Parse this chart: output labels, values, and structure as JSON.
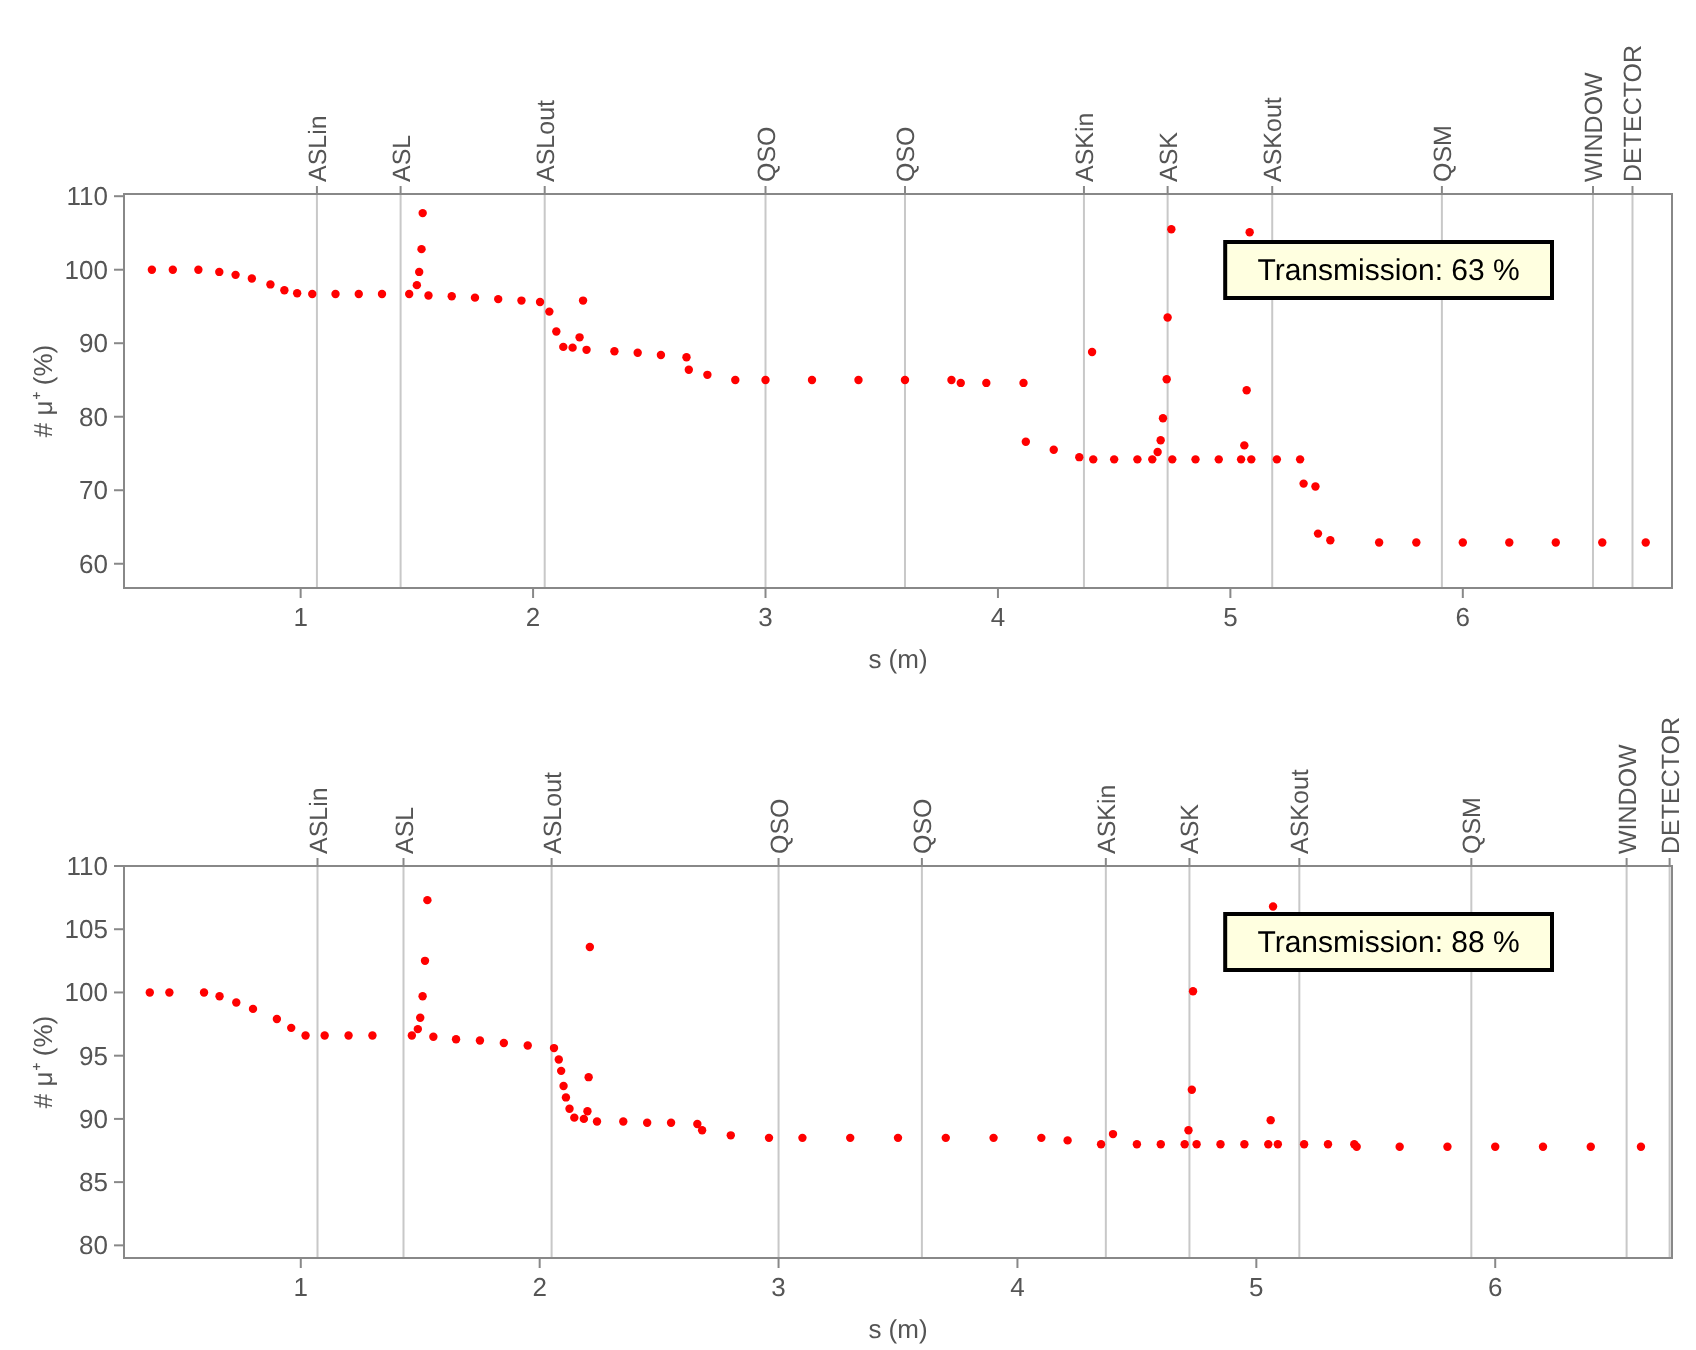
{
  "chart_data": [
    {
      "type": "scatter",
      "xlabel": "s (m)",
      "ylabel": "# μ⁺ (%)",
      "xlim": [
        0.24,
        6.9
      ],
      "xticks": [
        1,
        2,
        3,
        4,
        5,
        6
      ],
      "ylim": [
        56.7,
        110.3
      ],
      "yticks": [
        60,
        70,
        80,
        90,
        100,
        110
      ],
      "marker": "circle",
      "grid": false,
      "annotations": [
        "Transmission: 63 %"
      ],
      "ref_lines": [
        {
          "axis": "x",
          "value": 1.07,
          "label": "ASLin"
        },
        {
          "axis": "x",
          "value": 1.43,
          "label": "ASL"
        },
        {
          "axis": "x",
          "value": 2.05,
          "label": "ASLout"
        },
        {
          "axis": "x",
          "value": 3.0,
          "label": "QSO"
        },
        {
          "axis": "x",
          "value": 3.6,
          "label": "QSO"
        },
        {
          "axis": "x",
          "value": 4.37,
          "label": "ASKin"
        },
        {
          "axis": "x",
          "value": 4.73,
          "label": "ASK"
        },
        {
          "axis": "x",
          "value": 5.18,
          "label": "ASKout"
        },
        {
          "axis": "x",
          "value": 5.91,
          "label": "QSM"
        },
        {
          "axis": "x",
          "value": 6.56,
          "label": "WINDOW"
        },
        {
          "axis": "x",
          "value": 6.73,
          "label": "DETECTOR"
        }
      ],
      "series": [
        {
          "color": "#ff0000",
          "x": [
            0.36,
            0.45,
            0.56,
            0.65,
            0.72,
            0.79,
            0.87,
            0.93,
            0.985,
            1.05,
            1.15,
            1.25,
            1.35,
            1.467,
            1.5,
            1.51,
            1.52,
            1.525,
            1.55,
            1.65,
            1.75,
            1.85,
            1.95,
            2.03,
            2.07,
            2.1,
            2.13,
            2.17,
            2.2,
            2.215,
            2.23,
            2.35,
            2.45,
            2.55,
            2.66,
            2.67,
            2.75,
            2.87,
            3.0,
            3.2,
            3.4,
            3.6,
            3.8,
            3.84,
            3.95,
            4.11,
            4.12,
            4.24,
            4.35,
            4.405,
            4.41,
            4.5,
            4.6,
            4.664,
            4.687,
            4.7,
            4.71,
            4.726,
            4.73,
            4.746,
            4.75,
            4.85,
            4.95,
            5.046,
            5.06,
            5.07,
            5.083,
            5.09,
            5.2,
            5.3,
            5.315,
            5.366,
            5.377,
            5.43,
            5.64,
            5.8,
            6.0,
            6.2,
            6.4,
            6.6,
            6.787
          ],
          "values": [
            100,
            100,
            100,
            99.7,
            99.3,
            98.8,
            98.0,
            97.2,
            96.8,
            96.7,
            96.7,
            96.7,
            96.7,
            96.7,
            97.9,
            99.7,
            102.8,
            107.7,
            96.5,
            96.4,
            96.2,
            96.0,
            95.8,
            95.6,
            94.3,
            91.6,
            89.5,
            89.4,
            90.8,
            95.8,
            89.1,
            88.9,
            88.7,
            88.4,
            88.1,
            86.4,
            85.7,
            85.0,
            85.0,
            85.0,
            85.0,
            85.0,
            85.0,
            84.6,
            84.6,
            84.6,
            76.6,
            75.5,
            74.5,
            88.8,
            74.2,
            74.2,
            74.2,
            74.2,
            75.2,
            76.8,
            79.8,
            85.1,
            93.5,
            105.5,
            74.2,
            74.2,
            74.2,
            74.2,
            76.1,
            83.6,
            105.1,
            74.2,
            74.2,
            74.2,
            70.9,
            70.5,
            64.1,
            63.2,
            62.9,
            62.9,
            62.9,
            62.9,
            62.9,
            62.9,
            62.9
          ]
        }
      ]
    },
    {
      "type": "scatter",
      "xlabel": "s (m)",
      "ylabel": "# μ⁺ (%)",
      "xlim": [
        0.26,
        6.74
      ],
      "xticks": [
        1,
        2,
        3,
        4,
        5,
        6
      ],
      "ylim": [
        79,
        110
      ],
      "yticks": [
        80,
        85,
        90,
        95,
        100,
        105,
        110
      ],
      "marker": "circle",
      "grid": false,
      "annotations": [
        "Transmission: 88 %"
      ],
      "ref_lines": [
        {
          "axis": "x",
          "value": 1.07,
          "label": "ASLin"
        },
        {
          "axis": "x",
          "value": 1.43,
          "label": "ASL"
        },
        {
          "axis": "x",
          "value": 2.05,
          "label": "ASLout"
        },
        {
          "axis": "x",
          "value": 3.0,
          "label": "QSO"
        },
        {
          "axis": "x",
          "value": 3.6,
          "label": "QSO"
        },
        {
          "axis": "x",
          "value": 4.37,
          "label": "ASKin"
        },
        {
          "axis": "x",
          "value": 4.72,
          "label": "ASK"
        },
        {
          "axis": "x",
          "value": 5.18,
          "label": "ASKout"
        },
        {
          "axis": "x",
          "value": 5.9,
          "label": "QSM"
        },
        {
          "axis": "x",
          "value": 6.55,
          "label": "WINDOW"
        },
        {
          "axis": "x",
          "value": 6.73,
          "label": "DETECTOR"
        }
      ],
      "series": [
        {
          "color": "#ff0000",
          "x": [
            0.368,
            0.45,
            0.595,
            0.66,
            0.73,
            0.8,
            0.9,
            0.96,
            1.02,
            1.1,
            1.2,
            1.3,
            1.465,
            1.49,
            1.5,
            1.51,
            1.52,
            1.53,
            1.555,
            1.65,
            1.75,
            1.85,
            1.95,
            2.06,
            2.08,
            2.09,
            2.1,
            2.11,
            2.125,
            2.145,
            2.185,
            2.2,
            2.205,
            2.21,
            2.24,
            2.35,
            2.45,
            2.55,
            2.66,
            2.68,
            2.8,
            2.96,
            3.1,
            3.3,
            3.5,
            3.7,
            3.9,
            4.1,
            4.21,
            4.35,
            4.4,
            4.5,
            4.6,
            4.7,
            4.716,
            4.73,
            4.735,
            4.75,
            4.85,
            4.95,
            5.05,
            5.06,
            5.07,
            5.09,
            5.2,
            5.3,
            5.41,
            5.42,
            5.6,
            5.8,
            6.0,
            6.2,
            6.4,
            6.61
          ],
          "values": [
            100,
            100,
            100,
            99.7,
            99.2,
            98.7,
            97.9,
            97.2,
            96.6,
            96.6,
            96.6,
            96.6,
            96.6,
            97.1,
            98.0,
            99.7,
            102.5,
            107.3,
            96.5,
            96.3,
            96.2,
            96.0,
            95.8,
            95.6,
            94.7,
            93.8,
            92.6,
            91.7,
            90.8,
            90.1,
            90.0,
            90.6,
            93.3,
            103.6,
            89.8,
            89.8,
            89.7,
            89.7,
            89.6,
            89.1,
            88.7,
            88.5,
            88.5,
            88.5,
            88.5,
            88.5,
            88.5,
            88.5,
            88.3,
            88.0,
            88.8,
            88.0,
            88.0,
            88.0,
            89.1,
            92.3,
            100.1,
            88.0,
            88.0,
            88.0,
            88.0,
            89.9,
            106.8,
            88.0,
            88.0,
            88.0,
            88.0,
            87.8,
            87.8,
            87.8,
            87.8,
            87.8,
            87.8,
            87.8
          ]
        }
      ]
    }
  ]
}
